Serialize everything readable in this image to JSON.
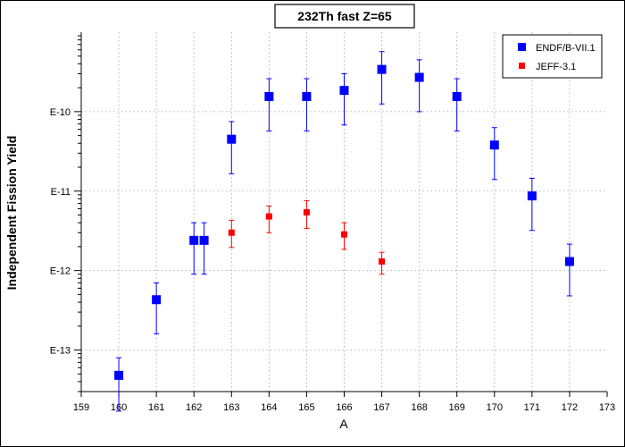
{
  "chart_data": {
    "type": "scatter",
    "title": "232Th fast Z=65",
    "xlabel": "A",
    "ylabel": "Independent Fission Yield",
    "y_scale": "log",
    "xlim": [
      159,
      173
    ],
    "ylim": [
      3e-14,
      1e-09
    ],
    "x_ticks": [
      "159",
      "160",
      "161",
      "162",
      "163",
      "164",
      "165",
      "166",
      "167",
      "168",
      "169",
      "170",
      "171",
      "172",
      "173"
    ],
    "y_ticks": [
      {
        "label": "E-13",
        "value": 1e-13
      },
      {
        "label": "E-12",
        "value": 1e-12
      },
      {
        "label": "E-11",
        "value": 1e-11
      },
      {
        "label": "E-10",
        "value": 1e-10
      }
    ],
    "grid": true,
    "legend_position": "top-right",
    "series": [
      {
        "name": "ENDF/B-VII.1",
        "color": "#0000ff",
        "marker": "square-large",
        "points": [
          {
            "x": 160.0,
            "y": 4.8e-14,
            "ylo": 1.7e-14,
            "yhi": 8e-14
          },
          {
            "x": 161.0,
            "y": 4.3e-13,
            "ylo": 1.6e-13,
            "yhi": 7e-13
          },
          {
            "x": 162.0,
            "y": 2.4e-12,
            "ylo": 9e-13,
            "yhi": 4e-12
          },
          {
            "x": 162.27,
            "y": 2.4e-12,
            "ylo": 9e-13,
            "yhi": 4e-12
          },
          {
            "x": 163.0,
            "y": 4.5e-11,
            "ylo": 1.65e-11,
            "yhi": 7.5e-11
          },
          {
            "x": 164.0,
            "y": 1.55e-10,
            "ylo": 5.7e-11,
            "yhi": 2.6e-10
          },
          {
            "x": 165.0,
            "y": 1.55e-10,
            "ylo": 5.7e-11,
            "yhi": 2.6e-10
          },
          {
            "x": 166.0,
            "y": 1.85e-10,
            "ylo": 6.8e-11,
            "yhi": 3e-10
          },
          {
            "x": 167.0,
            "y": 3.4e-10,
            "ylo": 1.25e-10,
            "yhi": 5.7e-10
          },
          {
            "x": 168.0,
            "y": 2.7e-10,
            "ylo": 1e-10,
            "yhi": 4.5e-10
          },
          {
            "x": 169.0,
            "y": 1.55e-10,
            "ylo": 5.7e-11,
            "yhi": 2.6e-10
          },
          {
            "x": 170.0,
            "y": 3.8e-11,
            "ylo": 1.4e-11,
            "yhi": 6.3e-11
          },
          {
            "x": 171.0,
            "y": 8.7e-12,
            "ylo": 3.2e-12,
            "yhi": 1.45e-11
          },
          {
            "x": 172.0,
            "y": 1.3e-12,
            "ylo": 4.8e-13,
            "yhi": 2.15e-12
          }
        ]
      },
      {
        "name": "JEFF-3.1",
        "color": "#ff0000",
        "marker": "square-small",
        "points": [
          {
            "x": 163.0,
            "y": 3e-12,
            "ylo": 1.95e-12,
            "yhi": 4.3e-12
          },
          {
            "x": 164.0,
            "y": 4.8e-12,
            "ylo": 3e-12,
            "yhi": 6.5e-12
          },
          {
            "x": 165.0,
            "y": 5.4e-12,
            "ylo": 3.4e-12,
            "yhi": 7.6e-12
          },
          {
            "x": 166.0,
            "y": 2.85e-12,
            "ylo": 1.85e-12,
            "yhi": 4e-12
          },
          {
            "x": 167.0,
            "y": 1.3e-12,
            "ylo": 9e-13,
            "yhi": 1.7e-12
          }
        ]
      }
    ]
  }
}
